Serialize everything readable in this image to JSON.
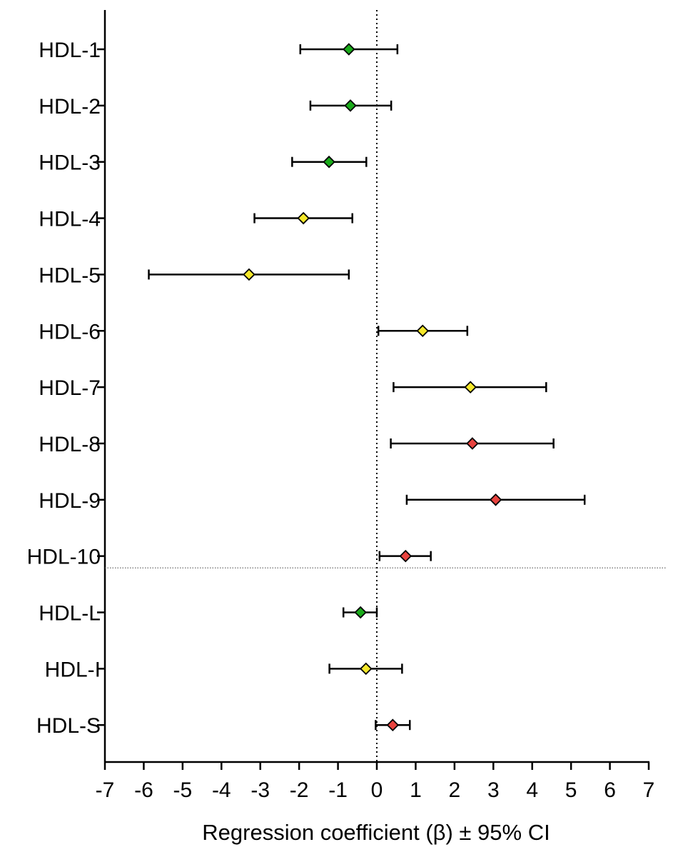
{
  "chart_data": {
    "type": "scatter",
    "title": "",
    "xlabel": "Regression coefficient (β) ± 95% CI",
    "ylabel": "",
    "xlim": [
      -7,
      7
    ],
    "xticks": [
      "-7",
      "-6",
      "-5",
      "-4",
      "-3",
      "-2",
      "-1",
      "0",
      "1",
      "2",
      "3",
      "4",
      "5",
      "6",
      "7"
    ],
    "reference_line_x": 0,
    "separator_after": "HDL-10",
    "grid": false,
    "legend": "none",
    "colors": {
      "green": "#1aab1a",
      "yellow": "#f5e82a",
      "red": "#e8433f"
    },
    "points": [
      {
        "label": "HDL-1",
        "beta": -0.72,
        "ci_low": -1.97,
        "ci_high": 0.53,
        "color": "green"
      },
      {
        "label": "HDL-2",
        "beta": -0.68,
        "ci_low": -1.71,
        "ci_high": 0.37,
        "color": "green"
      },
      {
        "label": "HDL-3",
        "beta": -1.23,
        "ci_low": -2.18,
        "ci_high": -0.27,
        "color": "green"
      },
      {
        "label": "HDL-4",
        "beta": -1.89,
        "ci_low": -3.15,
        "ci_high": -0.63,
        "color": "yellow"
      },
      {
        "label": "HDL-5",
        "beta": -3.29,
        "ci_low": -5.87,
        "ci_high": -0.72,
        "color": "yellow"
      },
      {
        "label": "HDL-6",
        "beta": 1.18,
        "ci_low": 0.04,
        "ci_high": 2.33,
        "color": "yellow"
      },
      {
        "label": "HDL-7",
        "beta": 2.41,
        "ci_low": 0.43,
        "ci_high": 4.36,
        "color": "yellow"
      },
      {
        "label": "HDL-8",
        "beta": 2.46,
        "ci_low": 0.36,
        "ci_high": 4.55,
        "color": "red"
      },
      {
        "label": "HDL-9",
        "beta": 3.06,
        "ci_low": 0.77,
        "ci_high": 5.35,
        "color": "red"
      },
      {
        "label": "HDL-10",
        "beta": 0.74,
        "ci_low": 0.07,
        "ci_high": 1.39,
        "color": "red"
      },
      {
        "label": "HDL-L",
        "beta": -0.42,
        "ci_low": -0.86,
        "ci_high": 0.0,
        "color": "green"
      },
      {
        "label": "HDL-I",
        "beta": -0.28,
        "ci_low": -1.22,
        "ci_high": 0.65,
        "color": "yellow"
      },
      {
        "label": "HDL-S",
        "beta": 0.41,
        "ci_low": -0.03,
        "ci_high": 0.85,
        "color": "red"
      }
    ]
  }
}
